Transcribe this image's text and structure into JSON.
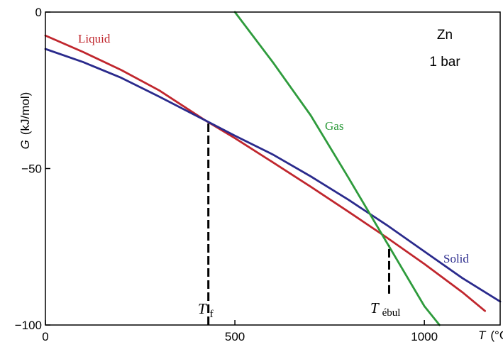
{
  "chart_data": {
    "type": "line",
    "title": "",
    "xlabel_var": "T",
    "xlabel_unit": "(°C)",
    "ylabel_var": "G",
    "ylabel_unit": "(kJ/mol)",
    "xlim": [
      0,
      1200
    ],
    "ylim": [
      -100,
      0
    ],
    "xticks": [
      0,
      500,
      1000
    ],
    "yticks": [
      0,
      -50,
      -100
    ],
    "xtick_labels": [
      "0",
      "500",
      "1000"
    ],
    "ytick_labels": [
      "0",
      "−50",
      "−100"
    ],
    "grid": false,
    "corner_label": [
      "Zn",
      "1 bar"
    ],
    "series": [
      {
        "name": "Liquid",
        "color": "#c0262d",
        "x": [
          0,
          100,
          200,
          300,
          420,
          500,
          600,
          700,
          800,
          900,
          1000,
          1100,
          1160
        ],
        "y": [
          -7.5,
          -12.8,
          -18.5,
          -25,
          -34.5,
          -40.3,
          -48,
          -55.8,
          -63.8,
          -72,
          -80.5,
          -89.5,
          -95.5
        ]
      },
      {
        "name": "Solid",
        "color": "#2a2a8c",
        "x": [
          0,
          100,
          200,
          300,
          420,
          500,
          600,
          700,
          800,
          900,
          1000,
          1100,
          1200
        ],
        "y": [
          -11.8,
          -16,
          -21,
          -27,
          -34.5,
          -39.5,
          -45.5,
          -52.5,
          -60,
          -68,
          -76.5,
          -85,
          -92.5
        ]
      },
      {
        "name": "Gas",
        "color": "#2e9b3c",
        "x": [
          500,
          600,
          700,
          800,
          900,
          1000,
          1040
        ],
        "y": [
          0,
          -16,
          -33,
          -53,
          -73.5,
          -94,
          -100
        ]
      }
    ],
    "annotations": [
      {
        "label_main": "T",
        "label_sub": "f",
        "x": 430,
        "y_from": -100,
        "y_to": -34.5
      },
      {
        "label_main": "T",
        "label_sub": "ébul",
        "x": 907,
        "y_from": -90,
        "y_to": -74.5
      }
    ]
  }
}
